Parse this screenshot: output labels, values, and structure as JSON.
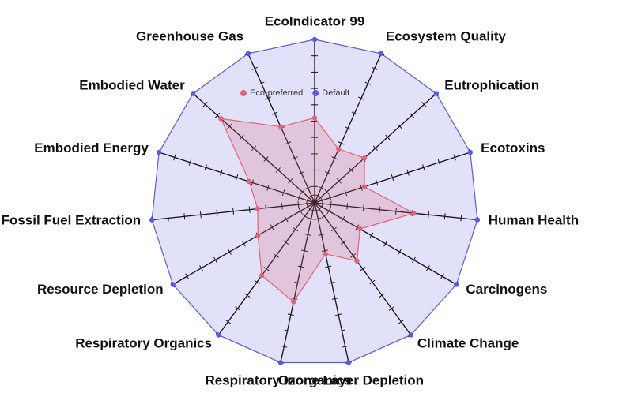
{
  "chart_data": {
    "type": "radar",
    "categories": [
      "EcoIndicator 99",
      "Ecosystem Quality",
      "Eutrophication",
      "Ecotoxins",
      "Human Health",
      "Carcinogens",
      "Climate Change",
      "Ozone Layer Depletion",
      "Respiratory Inorganics",
      "Respiratory Organics",
      "Resource Depletion",
      "Fossil Fuel Extraction",
      "Embodied Energy",
      "Embodied Water",
      "Greenhouse Gas"
    ],
    "series": [
      {
        "name": "Eco-preferred",
        "color": "#e06478",
        "values": [
          0.52,
          0.36,
          0.41,
          0.32,
          0.61,
          0.32,
          0.44,
          0.32,
          0.62,
          0.55,
          0.4,
          0.35,
          0.42,
          0.77,
          0.51
        ]
      },
      {
        "name": "Default",
        "color": "#5a5ae6",
        "values": [
          1,
          1,
          1,
          1,
          1,
          1,
          1,
          1,
          1,
          1,
          1,
          1,
          1,
          1,
          1
        ]
      }
    ],
    "rlim": [
      0,
      1
    ],
    "rticks": [
      0.1,
      0.2,
      0.3,
      0.4,
      0.5,
      0.6,
      0.7,
      0.8,
      0.9,
      1
    ],
    "legend": "top"
  }
}
